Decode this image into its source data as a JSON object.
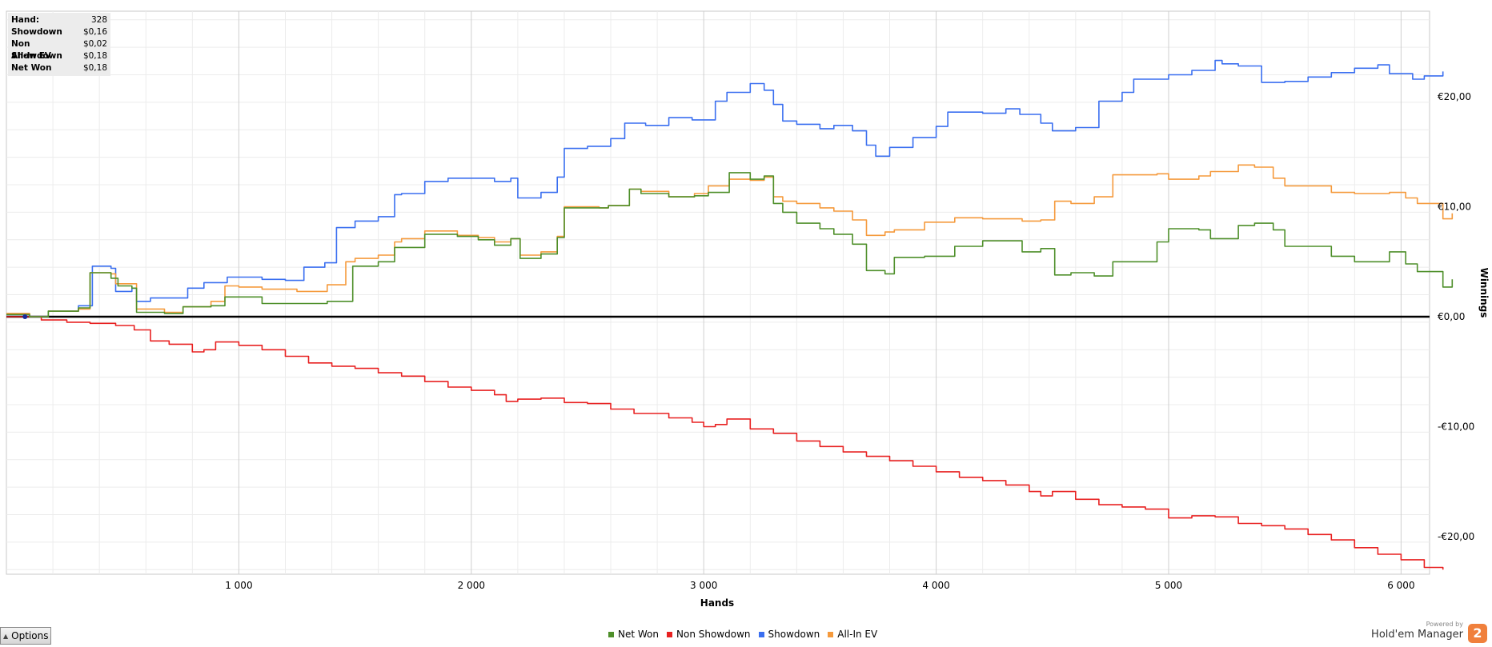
{
  "info_box": [
    {
      "label": "Hand:",
      "value": "328"
    },
    {
      "label": "Showdown",
      "value": "$0,16"
    },
    {
      "label": "Non Showdown",
      "value": "$0,02"
    },
    {
      "label": "All-In EV",
      "value": "$0,18"
    },
    {
      "label": "Net Won",
      "value": "$0,18"
    }
  ],
  "options_label": "Options",
  "brand": {
    "powered": "Powered by",
    "name": "Hold'em Manager",
    "logo": "2"
  },
  "chart_data": {
    "type": "line",
    "xlabel": "Hands",
    "ylabel": "Winnings",
    "xlim": [
      0,
      6180
    ],
    "ylim": [
      -23,
      28
    ],
    "x_ticks": [
      1000,
      2000,
      3000,
      4000,
      5000,
      6000
    ],
    "x_tick_labels": [
      "1 000",
      "2 000",
      "3 000",
      "4 000",
      "5 000",
      "6 000"
    ],
    "y_ticks": [
      -20,
      -10,
      0,
      10,
      20
    ],
    "y_tick_labels": [
      "-€20,00",
      "-€10,00",
      "€0,00",
      "€10,00",
      "€20,00"
    ],
    "grid": true,
    "legend_position": "bottom",
    "series": [
      {
        "name": "Net Won",
        "color": "#4e8f2a",
        "points": [
          [
            0,
            0.2
          ],
          [
            100,
            0
          ],
          [
            180,
            0.5
          ],
          [
            310,
            0.8
          ],
          [
            360,
            4.0
          ],
          [
            450,
            3.5
          ],
          [
            480,
            2.8
          ],
          [
            540,
            2.6
          ],
          [
            560,
            0.4
          ],
          [
            680,
            0.3
          ],
          [
            760,
            0.9
          ],
          [
            880,
            1.0
          ],
          [
            940,
            1.8
          ],
          [
            1100,
            1.2
          ],
          [
            1200,
            1.2
          ],
          [
            1380,
            1.4
          ],
          [
            1490,
            4.6
          ],
          [
            1600,
            5.0
          ],
          [
            1670,
            6.3
          ],
          [
            1800,
            7.5
          ],
          [
            1940,
            7.3
          ],
          [
            2030,
            7.0
          ],
          [
            2100,
            6.5
          ],
          [
            2170,
            7.1
          ],
          [
            2210,
            5.3
          ],
          [
            2300,
            5.7
          ],
          [
            2370,
            7.2
          ],
          [
            2400,
            9.9
          ],
          [
            2550,
            9.9
          ],
          [
            2590,
            10.1
          ],
          [
            2680,
            11.6
          ],
          [
            2730,
            11.2
          ],
          [
            2850,
            10.9
          ],
          [
            2960,
            11.0
          ],
          [
            3020,
            11.3
          ],
          [
            3110,
            13.1
          ],
          [
            3200,
            12.5
          ],
          [
            3260,
            12.8
          ],
          [
            3300,
            10.3
          ],
          [
            3340,
            9.5
          ],
          [
            3400,
            8.5
          ],
          [
            3500,
            8.0
          ],
          [
            3560,
            7.5
          ],
          [
            3640,
            6.6
          ],
          [
            3700,
            4.2
          ],
          [
            3780,
            3.9
          ],
          [
            3820,
            5.4
          ],
          [
            3950,
            5.5
          ],
          [
            4080,
            6.4
          ],
          [
            4200,
            6.9
          ],
          [
            4370,
            5.9
          ],
          [
            4450,
            6.2
          ],
          [
            4510,
            3.8
          ],
          [
            4580,
            4.0
          ],
          [
            4680,
            3.7
          ],
          [
            4760,
            5.0
          ],
          [
            4950,
            6.8
          ],
          [
            5000,
            8.0
          ],
          [
            5130,
            7.9
          ],
          [
            5180,
            7.1
          ],
          [
            5300,
            8.3
          ],
          [
            5370,
            8.5
          ],
          [
            5450,
            7.9
          ],
          [
            5500,
            6.4
          ],
          [
            5700,
            5.5
          ],
          [
            5800,
            5.0
          ],
          [
            5950,
            5.9
          ],
          [
            6020,
            4.8
          ],
          [
            6070,
            4.1
          ],
          [
            6180,
            2.7
          ],
          [
            6220,
            3.4
          ]
        ]
      },
      {
        "name": "Non Showdown",
        "color": "#e82121",
        "points": [
          [
            0,
            0
          ],
          [
            150,
            -0.3
          ],
          [
            260,
            -0.5
          ],
          [
            360,
            -0.6
          ],
          [
            470,
            -0.8
          ],
          [
            550,
            -1.2
          ],
          [
            620,
            -2.2
          ],
          [
            700,
            -2.5
          ],
          [
            800,
            -3.2
          ],
          [
            850,
            -3.0
          ],
          [
            900,
            -2.3
          ],
          [
            1000,
            -2.6
          ],
          [
            1100,
            -3.0
          ],
          [
            1200,
            -3.6
          ],
          [
            1300,
            -4.2
          ],
          [
            1400,
            -4.5
          ],
          [
            1500,
            -4.7
          ],
          [
            1600,
            -5.1
          ],
          [
            1700,
            -5.4
          ],
          [
            1800,
            -5.9
          ],
          [
            1900,
            -6.4
          ],
          [
            2000,
            -6.7
          ],
          [
            2100,
            -7.1
          ],
          [
            2150,
            -7.7
          ],
          [
            2200,
            -7.5
          ],
          [
            2300,
            -7.4
          ],
          [
            2400,
            -7.8
          ],
          [
            2500,
            -7.9
          ],
          [
            2600,
            -8.4
          ],
          [
            2700,
            -8.8
          ],
          [
            2850,
            -9.2
          ],
          [
            2950,
            -9.6
          ],
          [
            3000,
            -10.0
          ],
          [
            3050,
            -9.8
          ],
          [
            3100,
            -9.3
          ],
          [
            3200,
            -10.2
          ],
          [
            3300,
            -10.6
          ],
          [
            3400,
            -11.3
          ],
          [
            3500,
            -11.8
          ],
          [
            3600,
            -12.3
          ],
          [
            3700,
            -12.7
          ],
          [
            3800,
            -13.1
          ],
          [
            3900,
            -13.6
          ],
          [
            4000,
            -14.1
          ],
          [
            4100,
            -14.6
          ],
          [
            4200,
            -14.9
          ],
          [
            4300,
            -15.3
          ],
          [
            4400,
            -15.9
          ],
          [
            4450,
            -16.3
          ],
          [
            4500,
            -15.9
          ],
          [
            4600,
            -16.6
          ],
          [
            4700,
            -17.1
          ],
          [
            4800,
            -17.3
          ],
          [
            4900,
            -17.5
          ],
          [
            5000,
            -18.3
          ],
          [
            5100,
            -18.1
          ],
          [
            5200,
            -18.2
          ],
          [
            5300,
            -18.8
          ],
          [
            5400,
            -19.0
          ],
          [
            5500,
            -19.3
          ],
          [
            5600,
            -19.8
          ],
          [
            5700,
            -20.3
          ],
          [
            5800,
            -21.0
          ],
          [
            5900,
            -21.6
          ],
          [
            6000,
            -22.1
          ],
          [
            6100,
            -22.8
          ],
          [
            6180,
            -23.0
          ]
        ]
      },
      {
        "name": "Showdown",
        "color": "#3a6ff0",
        "points": [
          [
            0,
            0.2
          ],
          [
            100,
            0
          ],
          [
            180,
            0.5
          ],
          [
            310,
            1.0
          ],
          [
            370,
            4.6
          ],
          [
            450,
            4.4
          ],
          [
            470,
            2.3
          ],
          [
            540,
            2.6
          ],
          [
            560,
            1.4
          ],
          [
            620,
            1.7
          ],
          [
            780,
            2.6
          ],
          [
            850,
            3.1
          ],
          [
            950,
            3.6
          ],
          [
            1100,
            3.4
          ],
          [
            1200,
            3.3
          ],
          [
            1280,
            4.5
          ],
          [
            1370,
            4.9
          ],
          [
            1420,
            8.1
          ],
          [
            1500,
            8.7
          ],
          [
            1600,
            9.1
          ],
          [
            1670,
            11.1
          ],
          [
            1700,
            11.2
          ],
          [
            1800,
            12.3
          ],
          [
            1900,
            12.6
          ],
          [
            2000,
            12.6
          ],
          [
            2100,
            12.3
          ],
          [
            2170,
            12.6
          ],
          [
            2200,
            10.8
          ],
          [
            2300,
            11.3
          ],
          [
            2370,
            12.7
          ],
          [
            2400,
            15.3
          ],
          [
            2500,
            15.5
          ],
          [
            2600,
            16.2
          ],
          [
            2660,
            17.6
          ],
          [
            2750,
            17.4
          ],
          [
            2850,
            18.1
          ],
          [
            2950,
            17.9
          ],
          [
            3050,
            19.6
          ],
          [
            3100,
            20.4
          ],
          [
            3200,
            21.2
          ],
          [
            3260,
            20.6
          ],
          [
            3300,
            19.3
          ],
          [
            3340,
            17.8
          ],
          [
            3400,
            17.5
          ],
          [
            3500,
            17.1
          ],
          [
            3560,
            17.4
          ],
          [
            3640,
            16.9
          ],
          [
            3700,
            15.6
          ],
          [
            3740,
            14.6
          ],
          [
            3800,
            15.4
          ],
          [
            3900,
            16.3
          ],
          [
            4000,
            17.3
          ],
          [
            4050,
            18.6
          ],
          [
            4200,
            18.5
          ],
          [
            4300,
            18.9
          ],
          [
            4360,
            18.4
          ],
          [
            4450,
            17.6
          ],
          [
            4500,
            16.9
          ],
          [
            4600,
            17.2
          ],
          [
            4700,
            19.6
          ],
          [
            4800,
            20.4
          ],
          [
            4850,
            21.6
          ],
          [
            5000,
            22.0
          ],
          [
            5100,
            22.4
          ],
          [
            5200,
            23.3
          ],
          [
            5230,
            23.0
          ],
          [
            5300,
            22.8
          ],
          [
            5400,
            21.3
          ],
          [
            5500,
            21.4
          ],
          [
            5600,
            21.8
          ],
          [
            5700,
            22.2
          ],
          [
            5800,
            22.6
          ],
          [
            5900,
            22.9
          ],
          [
            5950,
            22.1
          ],
          [
            6050,
            21.6
          ],
          [
            6100,
            21.9
          ],
          [
            6180,
            22.3
          ]
        ]
      },
      {
        "name": "All-In EV",
        "color": "#f59a3c",
        "points": [
          [
            0,
            0.3
          ],
          [
            100,
            0
          ],
          [
            180,
            0.5
          ],
          [
            310,
            0.7
          ],
          [
            360,
            4.0
          ],
          [
            450,
            3.9
          ],
          [
            470,
            3.0
          ],
          [
            540,
            3.0
          ],
          [
            560,
            0.7
          ],
          [
            680,
            0.4
          ],
          [
            760,
            0.9
          ],
          [
            880,
            1.4
          ],
          [
            940,
            2.8
          ],
          [
            1000,
            2.7
          ],
          [
            1100,
            2.5
          ],
          [
            1250,
            2.3
          ],
          [
            1380,
            2.9
          ],
          [
            1460,
            5.0
          ],
          [
            1500,
            5.3
          ],
          [
            1600,
            5.6
          ],
          [
            1670,
            6.8
          ],
          [
            1700,
            7.1
          ],
          [
            1800,
            7.8
          ],
          [
            1940,
            7.4
          ],
          [
            2030,
            7.2
          ],
          [
            2100,
            6.8
          ],
          [
            2170,
            7.1
          ],
          [
            2210,
            5.6
          ],
          [
            2300,
            5.9
          ],
          [
            2370,
            7.3
          ],
          [
            2400,
            10.0
          ],
          [
            2550,
            9.9
          ],
          [
            2590,
            10.1
          ],
          [
            2680,
            11.6
          ],
          [
            2730,
            11.4
          ],
          [
            2850,
            10.9
          ],
          [
            2960,
            11.2
          ],
          [
            3020,
            11.9
          ],
          [
            3110,
            12.5
          ],
          [
            3200,
            12.4
          ],
          [
            3260,
            12.7
          ],
          [
            3300,
            10.9
          ],
          [
            3340,
            10.5
          ],
          [
            3400,
            10.3
          ],
          [
            3500,
            9.9
          ],
          [
            3560,
            9.6
          ],
          [
            3640,
            8.8
          ],
          [
            3700,
            7.4
          ],
          [
            3780,
            7.7
          ],
          [
            3820,
            7.9
          ],
          [
            3950,
            8.6
          ],
          [
            4080,
            9.0
          ],
          [
            4200,
            8.9
          ],
          [
            4370,
            8.7
          ],
          [
            4450,
            8.8
          ],
          [
            4510,
            10.5
          ],
          [
            4580,
            10.3
          ],
          [
            4680,
            10.9
          ],
          [
            4760,
            12.9
          ],
          [
            4950,
            13.0
          ],
          [
            5000,
            12.5
          ],
          [
            5130,
            12.8
          ],
          [
            5180,
            13.2
          ],
          [
            5300,
            13.8
          ],
          [
            5370,
            13.6
          ],
          [
            5450,
            12.6
          ],
          [
            5500,
            11.9
          ],
          [
            5700,
            11.3
          ],
          [
            5800,
            11.2
          ],
          [
            5950,
            11.3
          ],
          [
            6020,
            10.8
          ],
          [
            6070,
            10.3
          ],
          [
            6180,
            8.9
          ],
          [
            6220,
            9.4
          ]
        ]
      }
    ]
  },
  "legend": [
    {
      "label": "Net Won",
      "color": "#4e8f2a"
    },
    {
      "label": "Non Showdown",
      "color": "#e82121"
    },
    {
      "label": "Showdown",
      "color": "#3a6ff0"
    },
    {
      "label": "All-In EV",
      "color": "#f59a3c"
    }
  ]
}
